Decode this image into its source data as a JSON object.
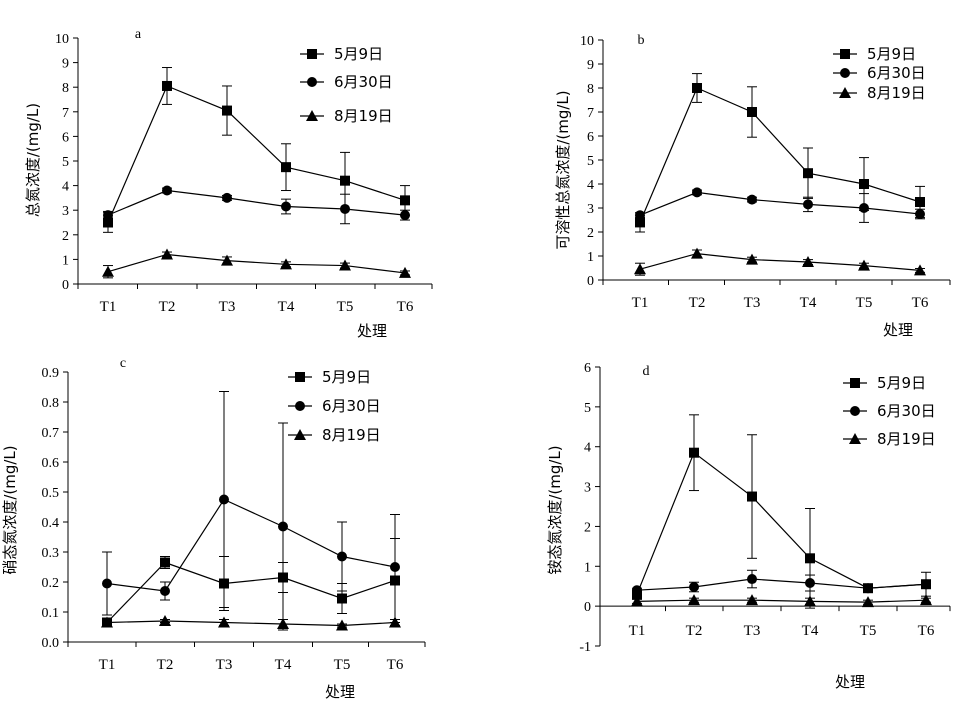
{
  "colors": {
    "ink": "#000000",
    "background": "#ffffff"
  },
  "chart_data": [
    {
      "type": "line",
      "panel_label": "a",
      "categories": [
        "T1",
        "T2",
        "T3",
        "T4",
        "T5",
        "T6"
      ],
      "xlabel": "处理",
      "ylabel": "总氮浓度/(mg/L)",
      "ylim": [
        0,
        10
      ],
      "yticks": [
        0,
        1,
        2,
        3,
        4,
        5,
        6,
        7,
        8,
        9,
        10
      ],
      "legend_position": "top-right",
      "series": [
        {
          "name": "5月9日",
          "marker": "square",
          "values": [
            2.5,
            8.05,
            7.05,
            4.75,
            4.2,
            3.4
          ],
          "errors": [
            0.4,
            0.75,
            1.0,
            0.95,
            1.15,
            0.6
          ]
        },
        {
          "name": "6月30日",
          "marker": "circle",
          "values": [
            2.8,
            3.8,
            3.5,
            3.15,
            3.05,
            2.8
          ],
          "errors": [
            0.15,
            0.1,
            0.1,
            0.3,
            0.6,
            0.2
          ]
        },
        {
          "name": "8月19日",
          "marker": "triangle",
          "values": [
            0.5,
            1.2,
            0.95,
            0.8,
            0.75,
            0.45
          ],
          "errors": [
            0.25,
            0.1,
            0.15,
            0.1,
            0.1,
            0.08
          ]
        }
      ]
    },
    {
      "type": "line",
      "panel_label": "b",
      "categories": [
        "T1",
        "T2",
        "T3",
        "T4",
        "T5",
        "T6"
      ],
      "xlabel": "处理",
      "ylabel": "可溶性总氮浓度/(mg/L)",
      "ylim": [
        0,
        10
      ],
      "yticks": [
        0,
        1,
        2,
        3,
        4,
        5,
        6,
        7,
        8,
        9,
        10
      ],
      "legend_position": "top-right",
      "series": [
        {
          "name": "5月9日",
          "marker": "square",
          "values": [
            2.4,
            8.0,
            7.0,
            4.45,
            4.0,
            3.25
          ],
          "errors": [
            0.4,
            0.6,
            1.05,
            1.05,
            1.1,
            0.65
          ]
        },
        {
          "name": "6月30日",
          "marker": "circle",
          "values": [
            2.7,
            3.65,
            3.35,
            3.15,
            3.0,
            2.75
          ],
          "errors": [
            0.1,
            0.1,
            0.1,
            0.3,
            0.6,
            0.2
          ]
        },
        {
          "name": "8月19日",
          "marker": "triangle",
          "values": [
            0.45,
            1.1,
            0.85,
            0.75,
            0.6,
            0.4
          ],
          "errors": [
            0.25,
            0.15,
            0.1,
            0.1,
            0.1,
            0.08
          ]
        }
      ]
    },
    {
      "type": "line",
      "panel_label": "c",
      "categories": [
        "T1",
        "T2",
        "T3",
        "T4",
        "T5",
        "T6"
      ],
      "xlabel": "处理",
      "ylabel": "硝态氮浓度/(mg/L)",
      "ylim": [
        0,
        0.9
      ],
      "yticks": [
        0.0,
        0.1,
        0.2,
        0.3,
        0.4,
        0.5,
        0.6,
        0.7,
        0.8,
        0.9
      ],
      "ytick_labels": [
        "0.0",
        "0.1",
        "0.2",
        "0.3",
        "0.4",
        "0.5",
        "0.6",
        "0.7",
        "0.8",
        "0.9"
      ],
      "legend_position": "top-right",
      "series": [
        {
          "name": "5月9日",
          "marker": "square",
          "values": [
            0.065,
            0.265,
            0.195,
            0.215,
            0.145,
            0.205
          ],
          "errors": [
            0.0,
            0.02,
            0.09,
            0.05,
            0.05,
            0.14
          ]
        },
        {
          "name": "6月30日",
          "marker": "circle",
          "values": [
            0.195,
            0.17,
            0.475,
            0.385,
            0.285,
            0.25
          ],
          "errors": [
            0.105,
            0.03,
            0.36,
            0.345,
            0.115,
            0.175
          ]
        },
        {
          "name": "8月19日",
          "marker": "triangle",
          "values": [
            0.065,
            0.07,
            0.065,
            0.06,
            0.055,
            0.065
          ],
          "errors": [
            0.008,
            0.005,
            0.01,
            0.015,
            0.005,
            0.01
          ]
        }
      ]
    },
    {
      "type": "line",
      "panel_label": "d",
      "categories": [
        "T1",
        "T2",
        "T3",
        "T4",
        "T5",
        "T6"
      ],
      "xlabel": "处理",
      "ylabel": "铵态氮浓度/(mg/L)",
      "ylim": [
        -1,
        6
      ],
      "yticks": [
        -1,
        0,
        1,
        2,
        3,
        4,
        5,
        6
      ],
      "legend_position": "top-right",
      "series": [
        {
          "name": "5月9日",
          "marker": "square",
          "values": [
            0.3,
            3.85,
            2.75,
            1.2,
            0.45,
            0.55
          ],
          "errors": [
            0.1,
            0.95,
            1.55,
            1.25,
            0.1,
            0.3
          ]
        },
        {
          "name": "6月30日",
          "marker": "circle",
          "values": [
            0.4,
            0.48,
            0.68,
            0.58,
            0.45,
            0.55
          ],
          "errors": [
            0.05,
            0.12,
            0.22,
            0.2,
            0.05,
            0.1
          ]
        },
        {
          "name": "8月19日",
          "marker": "triangle",
          "values": [
            0.12,
            0.15,
            0.15,
            0.12,
            0.1,
            0.15
          ],
          "errors": [
            0.05,
            0.05,
            0.05,
            0.08,
            0.05,
            0.05
          ]
        }
      ]
    }
  ]
}
